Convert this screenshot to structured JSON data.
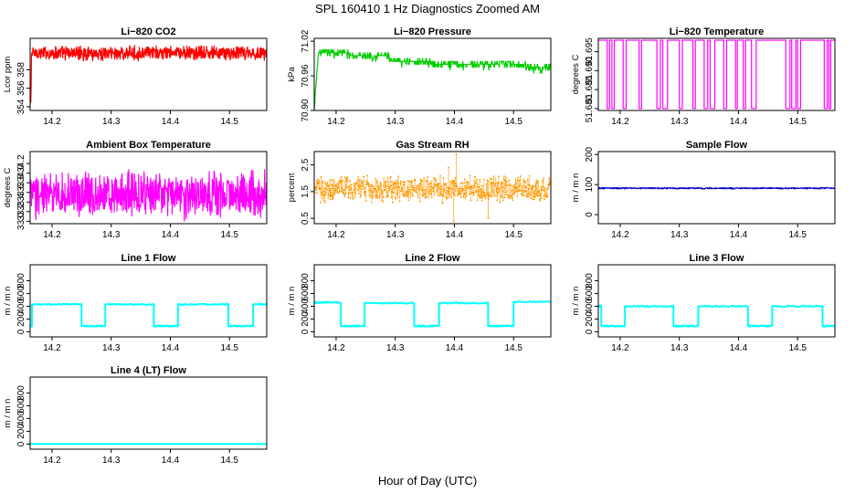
{
  "figure": {
    "title": "SPL  160410  1 Hz Diagnostics Zoomed AM",
    "xlabel": "Hour of Day (UTC)"
  },
  "chart_data": [
    {
      "type": "line",
      "title": "Li−820 CO2",
      "ylabel": "Lcor ppm",
      "color": "#ff0000",
      "xlim": [
        14.163,
        14.563
      ],
      "ylim": [
        353.6,
        361.4
      ],
      "xticks": [
        "14.2",
        "14.3",
        "14.4",
        "14.5"
      ],
      "yticks": [
        "354",
        "356",
        "358"
      ],
      "x_range": [
        14.163,
        14.563
      ],
      "pattern": "noise",
      "params": {
        "start": [
          354.2,
          354.8,
          354.5,
          356.4
        ],
        "center": 359.8,
        "noise": 0.9,
        "low_tail": 359.1
      }
    },
    {
      "type": "line",
      "title": "Li−820 Pressure",
      "ylabel": "kPa",
      "color": "#00cc00",
      "xlim": [
        14.163,
        14.563
      ],
      "ylim": [
        70.9,
        71.025
      ],
      "xticks": [
        "14.2",
        "14.3",
        "14.4",
        "14.5"
      ],
      "yticks": [
        "70.90",
        "70.96",
        "71.02"
      ],
      "x_range": [
        14.163,
        14.563
      ],
      "pattern": "steps",
      "params": {
        "start": 70.9,
        "levels": [
          [
            14.17,
            71.0
          ],
          [
            14.22,
            70.995
          ],
          [
            14.29,
            70.985
          ],
          [
            14.36,
            70.98
          ],
          [
            14.52,
            70.975
          ]
        ],
        "step": 0.005
      }
    },
    {
      "type": "line",
      "title": "Li−820 Temperature",
      "ylabel": "degrees C",
      "color": "#ff00ff",
      "xlim": [
        14.163,
        14.563
      ],
      "ylim": [
        51.6795,
        51.6985
      ],
      "xticks": [
        "14.2",
        "14.3",
        "14.4",
        "14.5"
      ],
      "yticks": [
        "51.680",
        "51.685",
        "51.690",
        "51.695"
      ],
      "x_range": [
        14.163,
        14.563
      ],
      "pattern": "flips",
      "params": {
        "high": 51.698,
        "low": 51.68,
        "edges": [
          14.178,
          14.182,
          14.186,
          14.19,
          14.205,
          14.21,
          14.232,
          14.236,
          14.262,
          14.268,
          14.272,
          14.28,
          14.3,
          14.305,
          14.323,
          14.327,
          14.342,
          14.348,
          14.352,
          14.36,
          14.375,
          14.38,
          14.395,
          14.398,
          14.408,
          14.412,
          14.422,
          14.43,
          14.48,
          14.487,
          14.49,
          14.497,
          14.5,
          14.505,
          14.545,
          14.55,
          14.553,
          14.556
        ]
      }
    },
    {
      "type": "line",
      "title": "Ambient Box Temperature",
      "ylabel": "degrees C",
      "color": "#ff00ff",
      "xlim": [
        14.163,
        14.563
      ],
      "ylim": [
        32.95,
        34.45
      ],
      "xticks": [
        "14.2",
        "14.3",
        "14.4",
        "14.5"
      ],
      "yticks": [
        "33.0",
        "33.2",
        "33.4",
        "33.6",
        "33.8",
        "34.0",
        "34.2"
      ],
      "x_range": [
        14.163,
        14.563
      ],
      "pattern": "noise",
      "params": {
        "center": 33.55,
        "noise": 0.55
      }
    },
    {
      "type": "scatter",
      "title": "Gas Stream RH",
      "ylabel": "percent",
      "color": "#ff9900",
      "xlim": [
        14.163,
        14.563
      ],
      "ylim": [
        0.3,
        3.0
      ],
      "xticks": [
        "14.2",
        "14.3",
        "14.4",
        "14.5"
      ],
      "yticks": [
        "0.5",
        "1.5",
        "2.5"
      ],
      "x_range": [
        14.163,
        14.563
      ],
      "pattern": "noise",
      "params": {
        "center": 1.6,
        "noise": 0.55,
        "spikes": [
          [
            14.403,
            2.9
          ],
          [
            14.399,
            0.4
          ],
          [
            14.457,
            0.5
          ],
          [
            14.39,
            2.4
          ]
        ]
      }
    },
    {
      "type": "line",
      "title": "Sample Flow",
      "ylabel": "m / m n",
      "color": "#0000cc",
      "xlim": [
        14.163,
        14.563
      ],
      "ylim": [
        -30,
        210
      ],
      "xticks": [
        "14.2",
        "14.3",
        "14.4",
        "14.5"
      ],
      "yticks": [
        "0",
        "100",
        "200"
      ],
      "x_range": [
        14.163,
        14.563
      ],
      "pattern": "noise",
      "params": {
        "center": 88,
        "noise": 3
      }
    },
    {
      "type": "line",
      "title": "Line 1 Flow",
      "ylabel": "m / m n",
      "color": "#00ffff",
      "xlim": [
        14.163,
        14.563
      ],
      "ylim": [
        -80,
        1050
      ],
      "xticks": [
        "14.2",
        "14.3",
        "14.4",
        "14.5"
      ],
      "yticks": [
        "0",
        "200",
        "400",
        "600",
        "800"
      ],
      "x_range": [
        14.163,
        14.563
      ],
      "pattern": "square",
      "params": {
        "first": 90,
        "high": 430,
        "low": 90,
        "edges": [
          [
            14.166,
            430
          ],
          [
            14.25,
            90
          ],
          [
            14.29,
            430
          ],
          [
            14.372,
            90
          ],
          [
            14.413,
            430
          ],
          [
            14.498,
            90
          ],
          [
            14.54,
            430
          ]
        ]
      }
    },
    {
      "type": "line",
      "title": "Line 2 Flow",
      "ylabel": "m / m n",
      "color": "#00ffff",
      "xlim": [
        14.163,
        14.563
      ],
      "ylim": [
        -80,
        1050
      ],
      "xticks": [
        "14.2",
        "14.3",
        "14.4",
        "14.5"
      ],
      "yticks": [
        "0",
        "200",
        "400",
        "600",
        "800"
      ],
      "x_range": [
        14.163,
        14.563
      ],
      "pattern": "square",
      "params": {
        "first": 460,
        "high": 450,
        "low": 90,
        "edges": [
          [
            14.166,
            460
          ],
          [
            14.208,
            90
          ],
          [
            14.248,
            450
          ],
          [
            14.332,
            90
          ],
          [
            14.374,
            450
          ],
          [
            14.457,
            90
          ],
          [
            14.5,
            470
          ]
        ]
      }
    },
    {
      "type": "line",
      "title": "Line 3 Flow",
      "ylabel": "m / m n",
      "color": "#00ffff",
      "xlim": [
        14.163,
        14.563
      ],
      "ylim": [
        -80,
        1050
      ],
      "xticks": [
        "14.2",
        "14.3",
        "14.4",
        "14.5"
      ],
      "yticks": [
        "0",
        "200",
        "400",
        "600",
        "800"
      ],
      "x_range": [
        14.163,
        14.563
      ],
      "pattern": "square",
      "params": {
        "first": 400,
        "high": 400,
        "low": 90,
        "edges": [
          [
            14.166,
            400
          ],
          [
            14.168,
            90
          ],
          [
            14.208,
            400
          ],
          [
            14.29,
            90
          ],
          [
            14.332,
            400
          ],
          [
            14.416,
            90
          ],
          [
            14.457,
            400
          ],
          [
            14.542,
            90
          ]
        ]
      }
    },
    {
      "type": "line",
      "title": "Line 4 (LT) Flow",
      "ylabel": "m / m n",
      "color": "#00ffff",
      "xlim": [
        14.163,
        14.563
      ],
      "ylim": [
        -80,
        1050
      ],
      "xticks": [
        "14.2",
        "14.3",
        "14.4",
        "14.5"
      ],
      "yticks": [
        "0",
        "200",
        "400",
        "600",
        "800"
      ],
      "x_range": [
        14.163,
        14.563
      ],
      "pattern": "flat",
      "params": {
        "value": 3
      }
    }
  ]
}
